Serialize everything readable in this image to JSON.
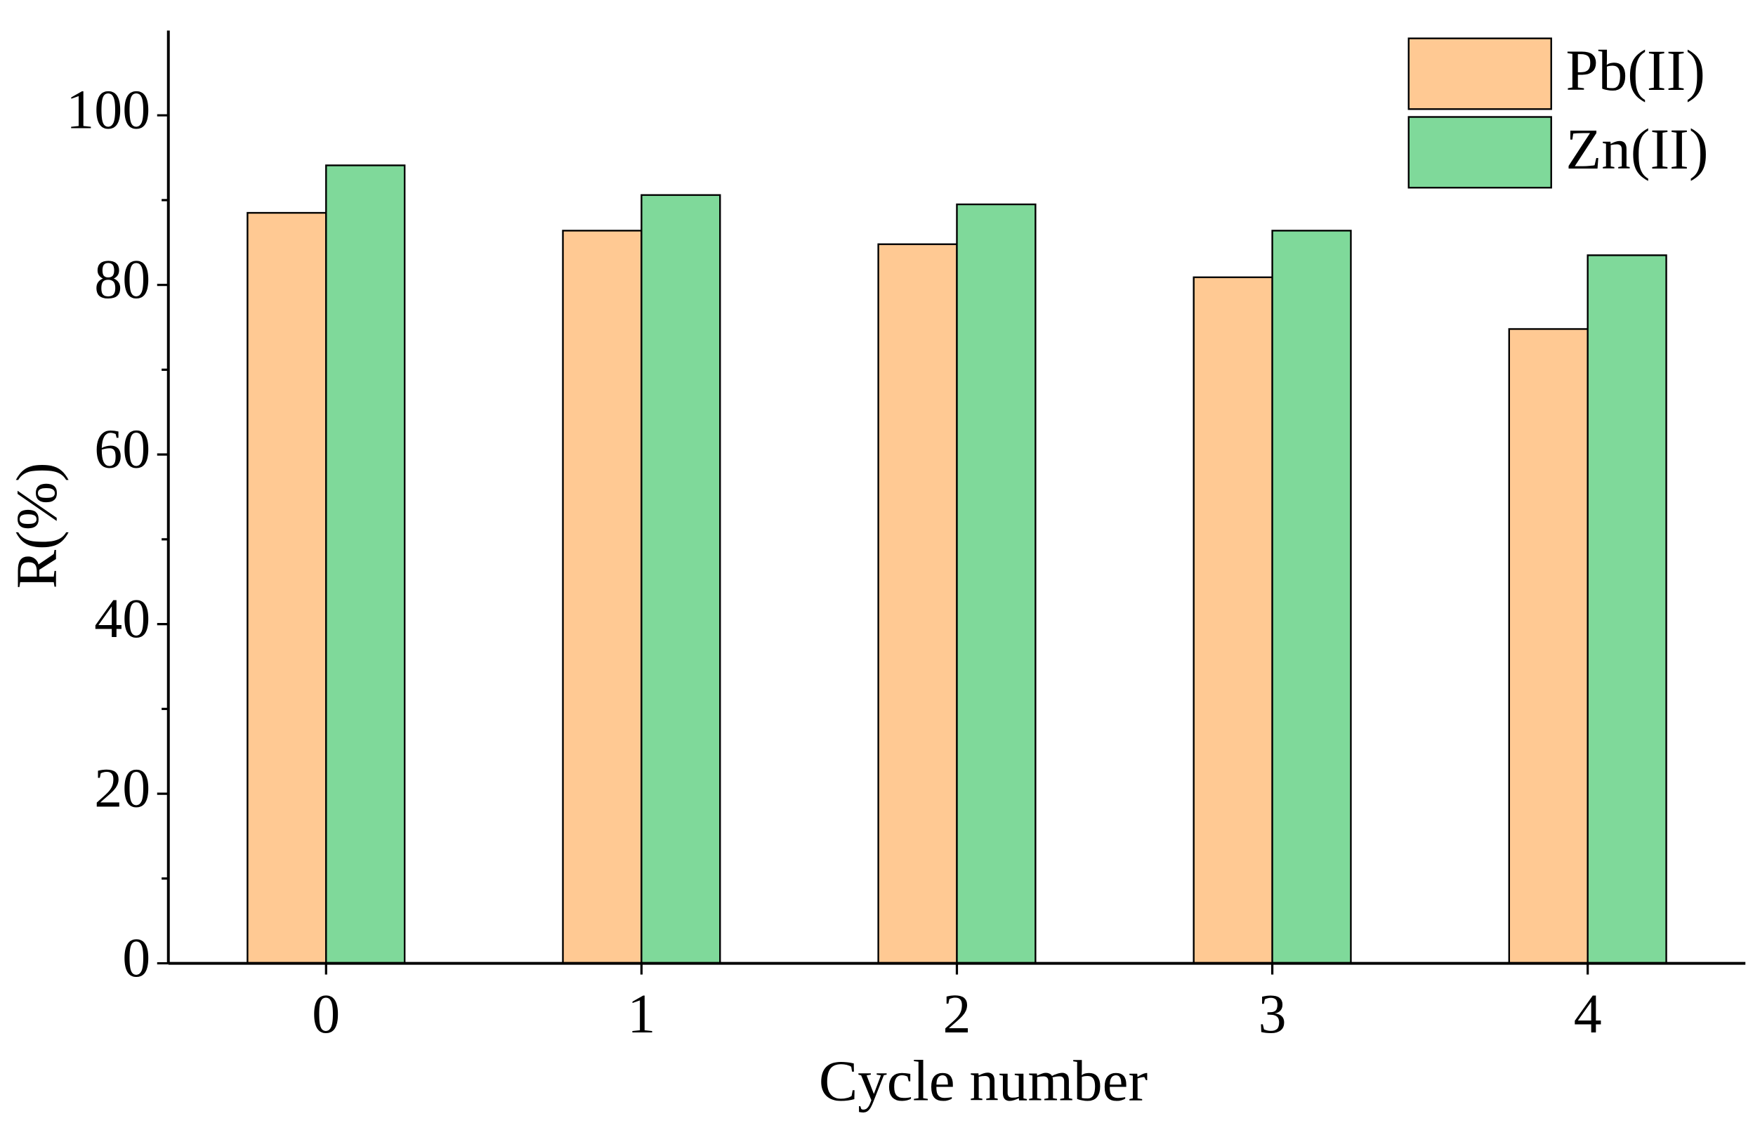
{
  "chart_data": {
    "type": "bar",
    "xlabel": "Cycle number",
    "ylabel": "R(%)",
    "categories": [
      "0",
      "1",
      "2",
      "3",
      "4"
    ],
    "series": [
      {
        "name": "Pb(II)",
        "color": "#ffc993",
        "values": [
          88.5,
          86.4,
          84.8,
          80.9,
          74.8
        ]
      },
      {
        "name": "Zn(II)",
        "color": "#7fd99a",
        "values": [
          94.1,
          90.6,
          89.5,
          86.4,
          83.5
        ]
      }
    ],
    "ylim": [
      0,
      110
    ],
    "yticks": [
      0,
      20,
      40,
      60,
      80,
      100
    ],
    "yticks_minor": [
      10,
      30,
      50,
      70,
      90
    ],
    "grid": false,
    "legend": "top-right"
  }
}
